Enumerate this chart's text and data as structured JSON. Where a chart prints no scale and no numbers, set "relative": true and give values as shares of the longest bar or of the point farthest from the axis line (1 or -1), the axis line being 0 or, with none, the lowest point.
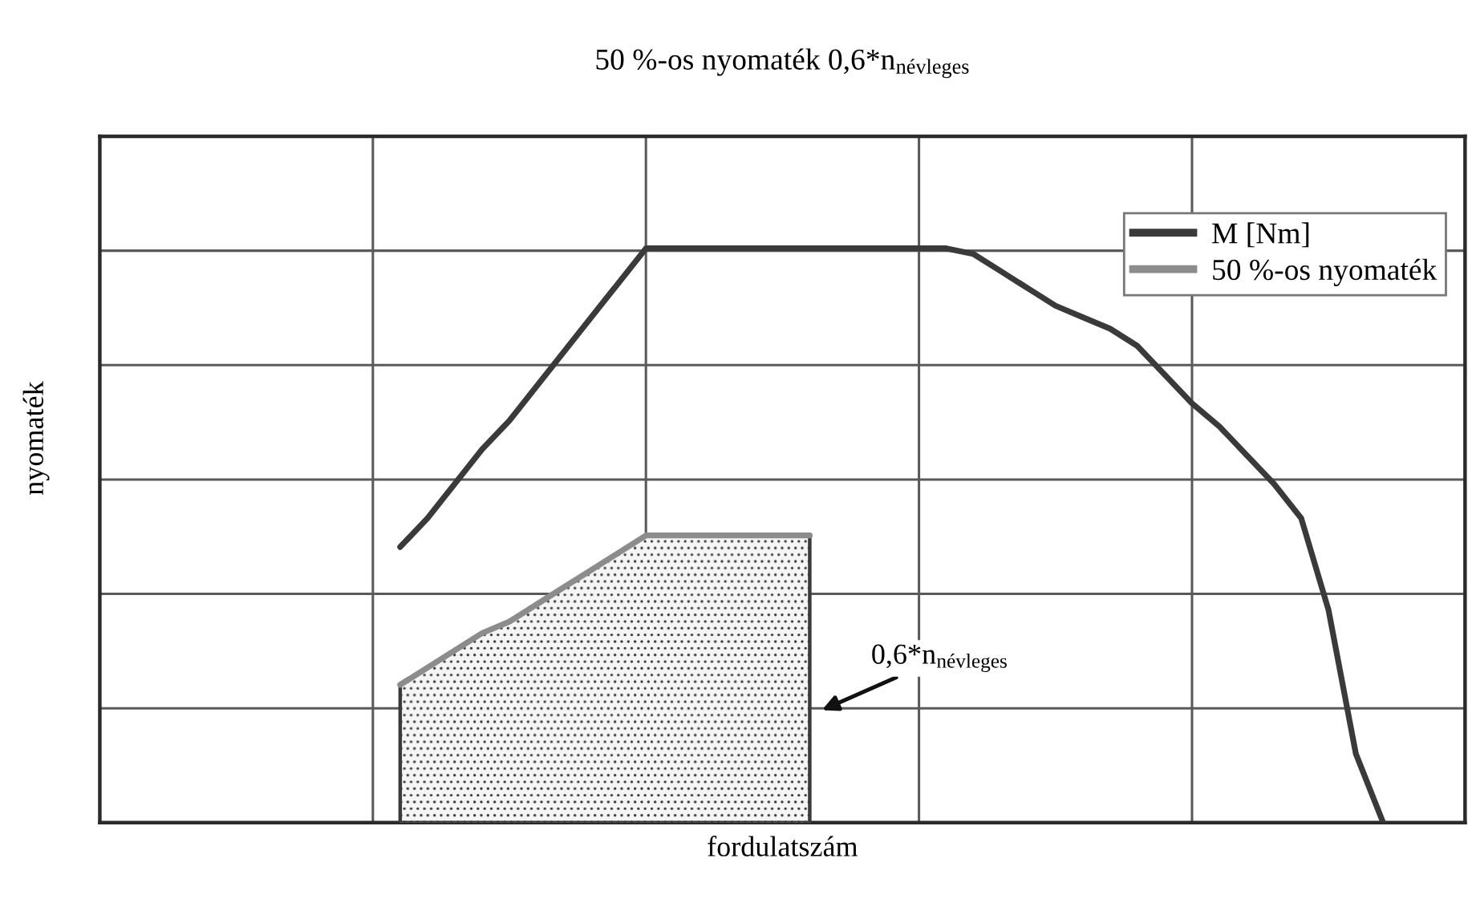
{
  "chart_data": {
    "type": "line",
    "title": "50 %-os nyomaték 0,6*n$_{névleges}$",
    "xlabel": "fordulatszám",
    "ylabel": "nyomaték",
    "relative": true,
    "categories": [
      null,
      null,
      null,
      null,
      null,
      null,
      null,
      null,
      null,
      null,
      null,
      null,
      null,
      null,
      null,
      null,
      null,
      null,
      null,
      null,
      null,
      null,
      null,
      null,
      null,
      null,
      null,
      null,
      null,
      null,
      null,
      null,
      null,
      null,
      null,
      null,
      null,
      null,
      null,
      null,
      null,
      null,
      null,
      null,
      null,
      null,
      null,
      null,
      null,
      null,
      null
    ],
    "grid": true,
    "legend": "top right",
    "series": [
      {
        "name": "M [Nm]",
        "color": "#3a3a3a",
        "values": [
          null,
          null,
          null,
          null,
          null,
          null,
          null,
          null,
          null,
          null,
          null,
          0.48,
          0.53,
          0.59,
          0.65,
          0.7,
          0.76,
          0.82,
          0.88,
          0.94,
          1.0,
          1.0,
          1.0,
          1.0,
          1.0,
          1.0,
          1.0,
          1.0,
          1.0,
          1.0,
          1.0,
          1.0,
          0.99,
          0.96,
          0.93,
          0.9,
          0.88,
          0.86,
          0.83,
          0.78,
          0.73,
          0.69,
          0.64,
          0.59,
          0.53,
          0.37,
          0.12,
          0.0,
          null,
          null,
          null
        ]
      },
      {
        "name": "50 %-os nyomaték",
        "type": "area",
        "color": "#8c8c8c",
        "values": [
          null,
          null,
          null,
          null,
          null,
          null,
          null,
          null,
          null,
          null,
          null,
          0.24,
          0.27,
          0.3,
          0.33,
          0.35,
          0.38,
          0.41,
          0.44,
          0.47,
          0.5,
          0.5,
          0.5,
          0.5,
          0.5,
          0.5,
          0.5,
          null,
          null,
          null,
          null,
          null,
          null,
          null,
          null,
          null,
          null,
          null,
          null,
          null,
          null,
          null,
          null,
          null,
          null,
          null,
          null,
          null,
          null,
          null,
          null
        ]
      }
    ],
    "annotations": [
      "0,6*n$_{névleges}$"
    ]
  }
}
